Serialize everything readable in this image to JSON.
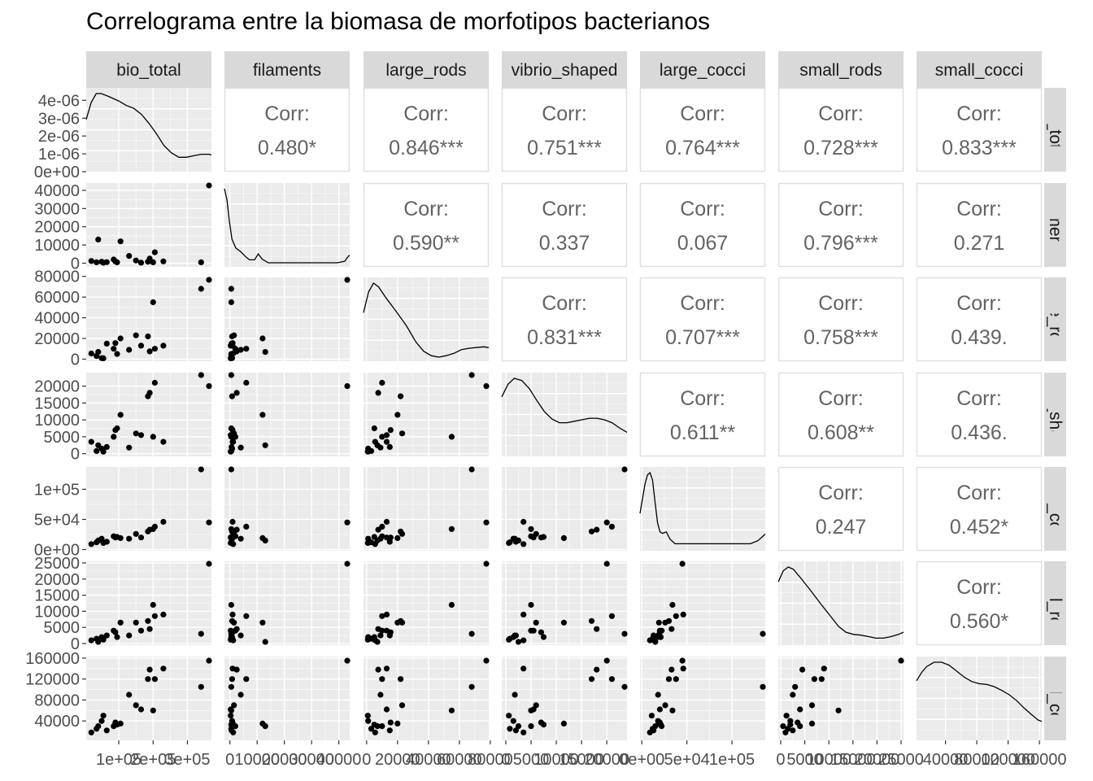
{
  "chart_data": {
    "type": "pairs",
    "title": "Correlograma entre la biomasa de morfotipos bacterianos",
    "variables": [
      "bio_total",
      "filaments",
      "large_rods",
      "vibrio_shaped",
      "large_cocci",
      "small_rods",
      "small_cocci"
    ],
    "corr_label": "Corr:",
    "correlations": [
      [
        "",
        "0.480*",
        "0.846***",
        "0.751***",
        "0.764***",
        "0.728***",
        "0.833***"
      ],
      [
        "",
        "",
        "0.590**",
        "0.337",
        "0.067",
        "0.796***",
        "0.271"
      ],
      [
        "",
        "",
        "",
        "0.831***",
        "0.707***",
        "0.758***",
        "0.439."
      ],
      [
        "",
        "",
        "",
        "",
        "0.611**",
        "0.608**",
        "0.436."
      ],
      [
        "",
        "",
        "",
        "",
        "",
        "0.247",
        "0.452*"
      ],
      [
        "",
        "",
        "",
        "",
        "",
        "",
        "0.560*"
      ]
    ],
    "y_ticks": [
      {
        "labels": [
          "0e+00",
          "1e-06",
          "2e-06",
          "3e-06",
          "4e-06"
        ],
        "values": [
          0,
          1e-06,
          2e-06,
          3e-06,
          4e-06
        ],
        "range": [
          0,
          4.7e-06
        ]
      },
      {
        "labels": [
          "0",
          "10000",
          "20000",
          "30000",
          "40000"
        ],
        "values": [
          0,
          10000,
          20000,
          30000,
          40000
        ],
        "range": [
          -2000,
          44000
        ]
      },
      {
        "labels": [
          "0",
          "20000",
          "40000",
          "60000",
          "80000"
        ],
        "values": [
          0,
          20000,
          40000,
          60000,
          80000
        ],
        "range": [
          -2000,
          79000
        ]
      },
      {
        "labels": [
          "0",
          "5000",
          "10000",
          "15000",
          "20000"
        ],
        "values": [
          0,
          5000,
          10000,
          15000,
          20000
        ],
        "range": [
          -800,
          24000
        ]
      },
      {
        "labels": [
          "0e+00",
          "5e+04",
          "1e+05"
        ],
        "values": [
          0,
          50000,
          100000
        ],
        "range": [
          -2000,
          137000
        ]
      },
      {
        "labels": [
          "0",
          "5000",
          "10000",
          "15000",
          "20000",
          "25000"
        ],
        "values": [
          0,
          5000,
          10000,
          15000,
          20000,
          25000
        ],
        "range": [
          -500,
          25500
        ]
      },
      {
        "labels": [
          "40000",
          "80000",
          "120000",
          "160000"
        ],
        "values": [
          40000,
          80000,
          120000,
          160000
        ],
        "range": [
          3000,
          163000
        ]
      }
    ],
    "x_ticks": [
      {
        "labels": [
          "1e+05",
          "2e+05",
          "3e+05"
        ],
        "values": [
          100000,
          200000,
          300000
        ],
        "range": [
          5000,
          370000
        ]
      },
      {
        "labels": [
          "0",
          "10000",
          "20000",
          "30000",
          "40000"
        ],
        "values": [
          0,
          10000,
          20000,
          30000,
          40000
        ],
        "range": [
          -2000,
          44000
        ]
      },
      {
        "labels": [
          "0",
          "20000",
          "40000",
          "60000",
          "80000"
        ],
        "values": [
          0,
          20000,
          40000,
          60000,
          80000
        ],
        "range": [
          -2000,
          79000
        ]
      },
      {
        "labels": [
          "0",
          "5000",
          "10000",
          "15000",
          "20000"
        ],
        "values": [
          0,
          5000,
          10000,
          15000,
          20000
        ],
        "range": [
          -800,
          24000
        ]
      },
      {
        "labels": [
          "0e+00",
          "5e+04",
          "1e+05"
        ],
        "values": [
          0,
          50000,
          100000
        ],
        "range": [
          -2000,
          137000
        ]
      },
      {
        "labels": [
          "0",
          "5000",
          "10000",
          "15000",
          "20000",
          "25000"
        ],
        "values": [
          0,
          5000,
          10000,
          15000,
          20000,
          25000
        ],
        "range": [
          -500,
          25500
        ]
      },
      {
        "labels": [
          "40000",
          "80000",
          "120000",
          "160000"
        ],
        "values": [
          40000,
          80000,
          120000,
          160000
        ],
        "range": [
          3000,
          163000
        ]
      }
    ],
    "observations": [
      [
        20000,
        1200,
        5500,
        3500,
        9000,
        1000,
        18000
      ],
      [
        35000,
        500,
        3000,
        800,
        12000,
        1500,
        25000
      ],
      [
        40000,
        13000,
        7000,
        2500,
        15000,
        500,
        30000
      ],
      [
        50000,
        800,
        1000,
        1500,
        18000,
        2000,
        40000
      ],
      [
        55000,
        300,
        800,
        600,
        11000,
        1200,
        50000
      ],
      [
        65000,
        600,
        15000,
        2000,
        13000,
        2500,
        22000
      ],
      [
        85000,
        2000,
        10000,
        5000,
        22000,
        4000,
        30000
      ],
      [
        90000,
        1000,
        15500,
        7000,
        20000,
        3500,
        37000
      ],
      [
        95000,
        500,
        5000,
        7500,
        21000,
        2000,
        33000
      ],
      [
        105000,
        12000,
        20000,
        11500,
        19000,
        6500,
        35000
      ],
      [
        130000,
        4000,
        9000,
        1800,
        18000,
        2500,
        90000
      ],
      [
        150000,
        1500,
        23000,
        6000,
        26000,
        6500,
        70000
      ],
      [
        165000,
        300,
        13000,
        5500,
        20000,
        4000,
        62000
      ],
      [
        185000,
        800,
        22000,
        17000,
        30000,
        7000,
        120000
      ],
      [
        190000,
        2500,
        7500,
        18000,
        33000,
        4500,
        138000
      ],
      [
        200000,
        500,
        55000,
        5000,
        34000,
        12000,
        60000
      ],
      [
        205000,
        6000,
        10000,
        21000,
        38000,
        8500,
        120000
      ],
      [
        230000,
        1000,
        13000,
        3500,
        46000,
        9000,
        140000
      ],
      [
        340000,
        500,
        68000,
        24000,
        135000,
        3000,
        105000
      ],
      [
        365000,
        44000,
        78000,
        20000,
        45000,
        25000,
        155000
      ]
    ],
    "densities": [
      [
        [
          0,
          0.65
        ],
        [
          0.04,
          0.88
        ],
        [
          0.08,
          1.0
        ],
        [
          0.12,
          1.0
        ],
        [
          0.18,
          0.96
        ],
        [
          0.26,
          0.9
        ],
        [
          0.32,
          0.84
        ],
        [
          0.38,
          0.8
        ],
        [
          0.44,
          0.72
        ],
        [
          0.5,
          0.6
        ],
        [
          0.56,
          0.46
        ],
        [
          0.62,
          0.3
        ],
        [
          0.68,
          0.2
        ],
        [
          0.74,
          0.14
        ],
        [
          0.8,
          0.14
        ],
        [
          0.86,
          0.16
        ],
        [
          0.92,
          0.18
        ],
        [
          0.98,
          0.18
        ],
        [
          1,
          0.17
        ]
      ],
      [
        [
          0,
          1.0
        ],
        [
          0.02,
          0.85
        ],
        [
          0.04,
          0.55
        ],
        [
          0.06,
          0.32
        ],
        [
          0.09,
          0.2
        ],
        [
          0.13,
          0.15
        ],
        [
          0.17,
          0.08
        ],
        [
          0.2,
          0.04
        ],
        [
          0.24,
          0.04
        ],
        [
          0.27,
          0.12
        ],
        [
          0.3,
          0.05
        ],
        [
          0.35,
          0.0
        ],
        [
          0.5,
          0.0
        ],
        [
          0.7,
          0.0
        ],
        [
          0.9,
          0.0
        ],
        [
          0.96,
          0.02
        ],
        [
          0.99,
          0.09
        ],
        [
          1,
          0.1
        ]
      ],
      [
        [
          0,
          0.6
        ],
        [
          0.04,
          0.88
        ],
        [
          0.08,
          1.0
        ],
        [
          0.12,
          0.95
        ],
        [
          0.18,
          0.8
        ],
        [
          0.26,
          0.62
        ],
        [
          0.34,
          0.43
        ],
        [
          0.42,
          0.2
        ],
        [
          0.48,
          0.08
        ],
        [
          0.54,
          0.02
        ],
        [
          0.6,
          0.0
        ],
        [
          0.66,
          0.02
        ],
        [
          0.72,
          0.05
        ],
        [
          0.78,
          0.1
        ],
        [
          0.84,
          0.12
        ],
        [
          0.9,
          0.13
        ],
        [
          0.96,
          0.14
        ],
        [
          1,
          0.13
        ]
      ],
      [
        [
          0,
          0.75
        ],
        [
          0.05,
          0.92
        ],
        [
          0.1,
          1.0
        ],
        [
          0.16,
          0.97
        ],
        [
          0.22,
          0.86
        ],
        [
          0.28,
          0.7
        ],
        [
          0.34,
          0.55
        ],
        [
          0.4,
          0.45
        ],
        [
          0.46,
          0.4
        ],
        [
          0.52,
          0.4
        ],
        [
          0.58,
          0.42
        ],
        [
          0.64,
          0.44
        ],
        [
          0.7,
          0.46
        ],
        [
          0.76,
          0.46
        ],
        [
          0.82,
          0.44
        ],
        [
          0.88,
          0.4
        ],
        [
          0.94,
          0.33
        ],
        [
          1,
          0.27
        ]
      ],
      [
        [
          0,
          0.45
        ],
        [
          0.02,
          0.65
        ],
        [
          0.04,
          0.85
        ],
        [
          0.06,
          0.97
        ],
        [
          0.08,
          1.0
        ],
        [
          0.1,
          0.9
        ],
        [
          0.12,
          0.6
        ],
        [
          0.14,
          0.32
        ],
        [
          0.16,
          0.2
        ],
        [
          0.18,
          0.18
        ],
        [
          0.21,
          0.2
        ],
        [
          0.24,
          0.1
        ],
        [
          0.28,
          0.04
        ],
        [
          0.4,
          0.04
        ],
        [
          0.6,
          0.04
        ],
        [
          0.8,
          0.04
        ],
        [
          0.88,
          0.04
        ],
        [
          0.94,
          0.08
        ],
        [
          1,
          0.17
        ]
      ],
      [
        [
          0,
          0.8
        ],
        [
          0.04,
          0.95
        ],
        [
          0.08,
          1.0
        ],
        [
          0.12,
          0.97
        ],
        [
          0.18,
          0.85
        ],
        [
          0.26,
          0.68
        ],
        [
          0.34,
          0.5
        ],
        [
          0.42,
          0.33
        ],
        [
          0.48,
          0.2
        ],
        [
          0.54,
          0.12
        ],
        [
          0.6,
          0.09
        ],
        [
          0.66,
          0.08
        ],
        [
          0.72,
          0.06
        ],
        [
          0.78,
          0.04
        ],
        [
          0.84,
          0.04
        ],
        [
          0.9,
          0.06
        ],
        [
          0.96,
          0.09
        ],
        [
          1,
          0.12
        ]
      ],
      [
        [
          0,
          0.75
        ],
        [
          0.04,
          0.86
        ],
        [
          0.08,
          0.94
        ],
        [
          0.14,
          1.0
        ],
        [
          0.2,
          1.0
        ],
        [
          0.26,
          0.96
        ],
        [
          0.32,
          0.88
        ],
        [
          0.38,
          0.8
        ],
        [
          0.44,
          0.74
        ],
        [
          0.5,
          0.71
        ],
        [
          0.56,
          0.7
        ],
        [
          0.62,
          0.67
        ],
        [
          0.68,
          0.62
        ],
        [
          0.74,
          0.56
        ],
        [
          0.8,
          0.48
        ],
        [
          0.86,
          0.38
        ],
        [
          0.92,
          0.29
        ],
        [
          0.97,
          0.22
        ],
        [
          1,
          0.2
        ]
      ]
    ]
  }
}
